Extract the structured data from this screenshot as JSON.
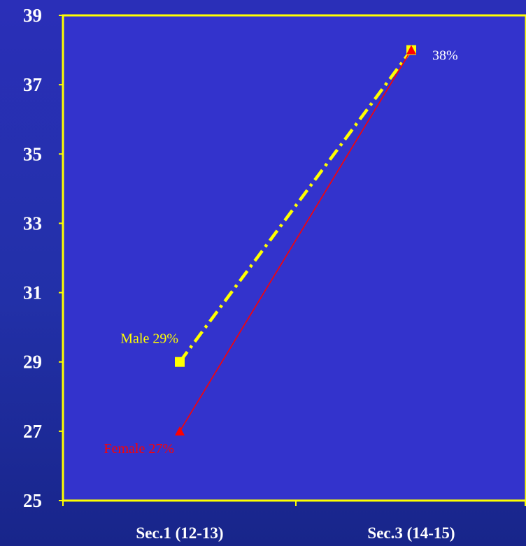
{
  "chart_data": {
    "type": "line",
    "categories": [
      "Sec.1 (12-13)",
      "Sec.3 (14-15)"
    ],
    "series": [
      {
        "name": "Male",
        "values": [
          29,
          38
        ],
        "color": "#ffff00",
        "marker": "square",
        "line_style": "dash-dot"
      },
      {
        "name": "Female",
        "values": [
          27,
          38
        ],
        "color": "#ff0000",
        "marker": "triangle",
        "line_style": "solid"
      }
    ],
    "ylim": [
      25,
      39
    ],
    "yticks": [
      25,
      27,
      29,
      31,
      33,
      35,
      37,
      39
    ],
    "annotations": [
      {
        "text": "Male 29%",
        "series": 0,
        "point": 0,
        "color": "#ffff00"
      },
      {
        "text": "Female  27%",
        "series": 1,
        "point": 0,
        "color": "#ff0000"
      },
      {
        "text": "38%",
        "series": 0,
        "point": 1,
        "color": "#ffffff"
      }
    ],
    "colors": {
      "axis": "#ffff00",
      "plot_bg": "#3333cc",
      "tick_text": "#ffffff"
    },
    "grid": false,
    "title": "",
    "xlabel": "",
    "ylabel": ""
  }
}
